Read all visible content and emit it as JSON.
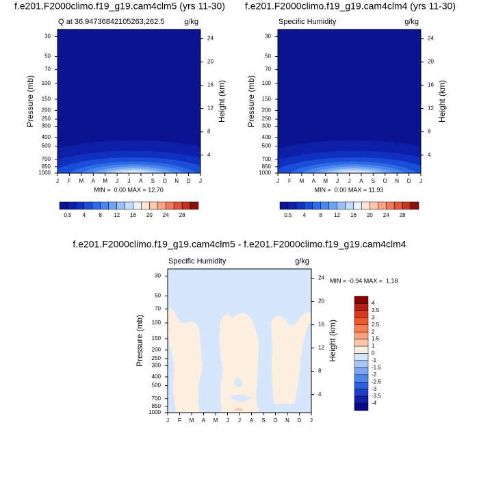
{
  "chart_data": [
    {
      "type": "contour",
      "title": "f.e201.F2000climo.f19_g19.cam4clm5 (yrs 11-30)",
      "subtitle": "Q at 36.94736842105263,262.5",
      "units": "g/kg",
      "categories": [
        "J",
        "F",
        "M",
        "A",
        "M",
        "J",
        "J",
        "A",
        "S",
        "O",
        "N",
        "D",
        "J"
      ],
      "ylabel": "Pressure (mb)",
      "ylog": true,
      "ylim": [
        1000,
        25
      ],
      "yticks": [
        30,
        50,
        70,
        100,
        150,
        200,
        250,
        300,
        400,
        500,
        700,
        850,
        1000
      ],
      "y2label": "Height (km)",
      "y2lim": [
        0.9,
        25.6
      ],
      "y2ticks": [
        4,
        8,
        12,
        16,
        20,
        24
      ],
      "stats": "MIN =  0.00 MAX = 12.70",
      "colorbar": {
        "orientation": "horizontal",
        "ticks": [
          0.5,
          4,
          8,
          12,
          16,
          20,
          24,
          28
        ],
        "colors": [
          "#0c1390",
          "#0d1fa6",
          "#1030c0",
          "#1a4ed6",
          "#2f6ae6",
          "#4a86ee",
          "#6fa3f2",
          "#98c0f6",
          "#c3dcfa",
          "#e8f1fd",
          "#fde6d8",
          "#fbc6ad",
          "#f7a284",
          "#ef7a5d",
          "#e0533d",
          "#c2321f",
          "#8c1010"
        ]
      }
    },
    {
      "type": "contour",
      "title": "f.e201.F2000climo.f19_g19.cam4clm4 (yrs 11-30)",
      "subtitle": "Specific Humidity",
      "units": "g/kg",
      "categories": [
        "J",
        "F",
        "M",
        "A",
        "M",
        "J",
        "J",
        "A",
        "S",
        "O",
        "N",
        "D",
        "J"
      ],
      "ylabel": "Pressure (mb)",
      "ylog": true,
      "ylim": [
        1000,
        25
      ],
      "yticks": [
        30,
        50,
        70,
        100,
        150,
        200,
        250,
        300,
        400,
        500,
        700,
        850,
        1000
      ],
      "y2label": "Height (km)",
      "y2lim": [
        0.9,
        25.6
      ],
      "y2ticks": [
        4,
        8,
        12,
        16,
        20,
        24
      ],
      "stats": "MIN =  0.00 MAX = 11.93",
      "colorbar": {
        "orientation": "horizontal",
        "ticks": [
          0.5,
          4,
          8,
          12,
          16,
          20,
          24,
          28
        ],
        "colors": [
          "#0c1390",
          "#0d1fa6",
          "#1030c0",
          "#1a4ed6",
          "#2f6ae6",
          "#4a86ee",
          "#6fa3f2",
          "#98c0f6",
          "#c3dcfa",
          "#e8f1fd",
          "#fde6d8",
          "#fbc6ad",
          "#f7a284",
          "#ef7a5d",
          "#e0533d",
          "#c2321f",
          "#8c1010"
        ]
      }
    },
    {
      "type": "contour",
      "title": "f.e201.F2000climo.f19_g19.cam4clm5 - f.e201.F2000climo.f19_g19.cam4clm4",
      "subtitle": "Specific Humidity",
      "units": "g/kg",
      "categories": [
        "J",
        "F",
        "M",
        "A",
        "M",
        "J",
        "J",
        "A",
        "S",
        "O",
        "N",
        "D",
        "J"
      ],
      "ylabel": "Pressure (mb)",
      "ylog": true,
      "ylim": [
        1000,
        25
      ],
      "yticks": [
        30,
        50,
        70,
        100,
        150,
        200,
        250,
        300,
        400,
        500,
        700,
        850,
        1000
      ],
      "y2label": "Height (km)",
      "y2lim": [
        0.9,
        25.6
      ],
      "y2ticks": [
        4,
        8,
        12,
        16,
        20,
        24
      ],
      "stats": "MIN = -0.94 MAX =  1.18",
      "colorbar": {
        "orientation": "vertical",
        "ticks": [
          4,
          3.5,
          3,
          2.5,
          2,
          1.5,
          1,
          0,
          -1,
          -1.5,
          -2,
          -2.5,
          -3,
          -3.5,
          -4
        ],
        "colors": [
          "#8b0000",
          "#b51f10",
          "#d93a1f",
          "#f0592e",
          "#f77f55",
          "#faa17f",
          "#fcc6a8",
          "#fdeee2",
          "#d6e6fb",
          "#a7c6f7",
          "#7aa6f0",
          "#4f86ea",
          "#2f60df",
          "#1d3dc8",
          "#1020a8",
          "#080888"
        ]
      }
    }
  ]
}
